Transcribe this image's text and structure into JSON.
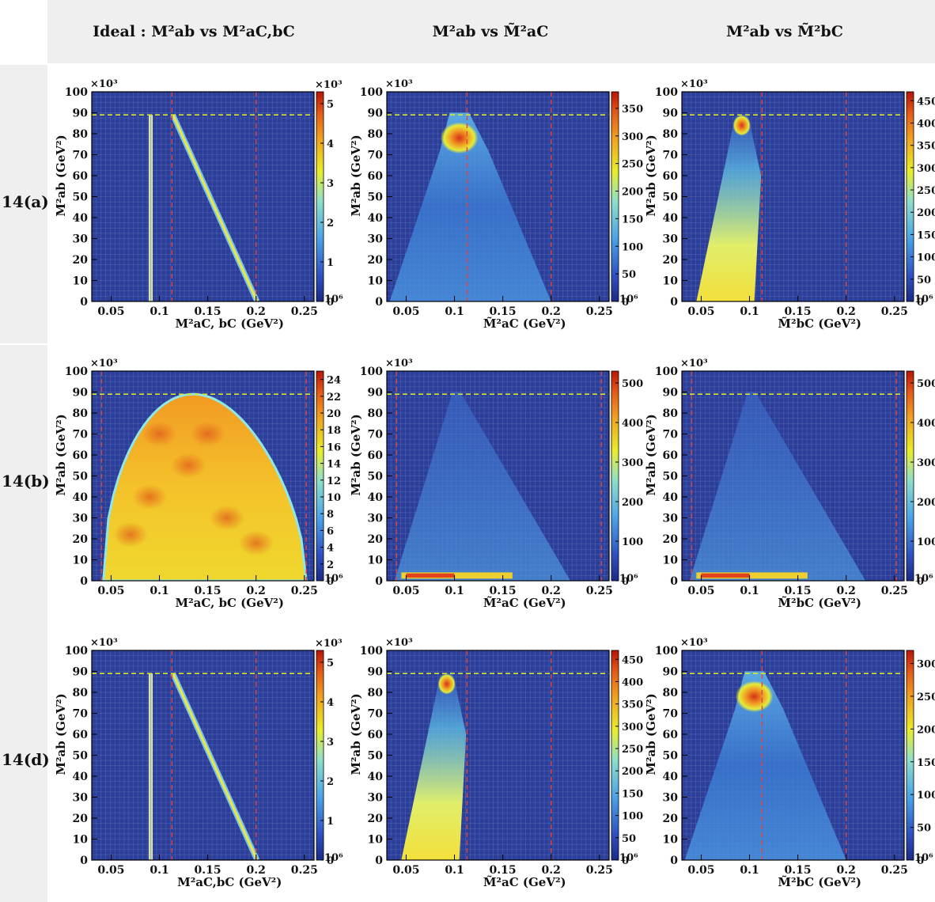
{
  "headers": [
    "Ideal : M²ab vs M²aC,bC",
    "M²ab vs M̃²aC",
    "M²ab vs M̃²bC"
  ],
  "rows": [
    "14(a)",
    "14(b)",
    "14(d)"
  ],
  "colors": {
    "frame_bg": "#2a3e9a",
    "cold": "#1b2a85",
    "hot": "#c81e12",
    "ref_red": "#e0473a",
    "ref_yellow": "#d8e62a"
  },
  "chart_data": [
    {
      "type": "heatmap",
      "id": "r0c0",
      "xlabel": "M²aC, bC (GeV²)",
      "ylabel": "M²ab (GeV²)",
      "xlim": [
        0.03,
        0.26
      ],
      "ylim": [
        0,
        100
      ],
      "x_multiplier": "×10⁶",
      "y_multiplier": "×10³",
      "xticks": [
        "0.05",
        "0.1",
        "0.15",
        "0.2",
        "0.25"
      ],
      "yticks": [
        "0",
        "10",
        "20",
        "30",
        "40",
        "50",
        "60",
        "70",
        "80",
        "90",
        "100"
      ],
      "z_multiplier": "×10³",
      "zticks": [
        {
          "v": 0,
          "t": "0"
        },
        {
          "v": 1,
          "t": "1"
        },
        {
          "v": 2,
          "t": "2"
        },
        {
          "v": 3,
          "t": "3"
        },
        {
          "v": 4,
          "t": "4"
        },
        {
          "v": 5,
          "t": "5"
        }
      ],
      "zmax": 5.3,
      "ref_x": [
        0.113,
        0.2
      ],
      "ref_y": 89,
      "shape": "ideal"
    },
    {
      "type": "heatmap",
      "id": "r0c1",
      "xlabel": "M̃²aC (GeV²)",
      "ylabel": "M²ab (GeV²)",
      "xlim": [
        0.03,
        0.26
      ],
      "ylim": [
        0,
        100
      ],
      "x_multiplier": "×10⁶",
      "y_multiplier": "×10³",
      "xticks": [
        "0.05",
        "0.1",
        "0.15",
        "0.2",
        "0.25"
      ],
      "yticks": [
        "0",
        "10",
        "20",
        "30",
        "40",
        "50",
        "60",
        "70",
        "80",
        "90",
        "100"
      ],
      "zticks": [
        {
          "v": 0,
          "t": "0"
        },
        {
          "v": 50,
          "t": "50"
        },
        {
          "v": 100,
          "t": "100"
        },
        {
          "v": 150,
          "t": "150"
        },
        {
          "v": 200,
          "t": "200"
        },
        {
          "v": 250,
          "t": "250"
        },
        {
          "v": 300,
          "t": "300"
        },
        {
          "v": 350,
          "t": "350"
        }
      ],
      "zmax": 380,
      "ref_x": [
        0.113,
        0.2
      ],
      "ref_y": 89,
      "shape": "triangle"
    },
    {
      "type": "heatmap",
      "id": "r0c2",
      "xlabel": "M̃²bC (GeV²)",
      "ylabel": "M²ab (GeV²)",
      "xlim": [
        0.03,
        0.26
      ],
      "ylim": [
        0,
        100
      ],
      "x_multiplier": "×10⁶",
      "y_multiplier": "×10³",
      "xticks": [
        "0.05",
        "0.1",
        "0.15",
        "0.2",
        "0.25"
      ],
      "yticks": [
        "0",
        "10",
        "20",
        "30",
        "40",
        "50",
        "60",
        "70",
        "80",
        "90",
        "100"
      ],
      "zticks": [
        {
          "v": 0,
          "t": "0"
        },
        {
          "v": 50,
          "t": "50"
        },
        {
          "v": 100,
          "t": "100"
        },
        {
          "v": 150,
          "t": "150"
        },
        {
          "v": 200,
          "t": "200"
        },
        {
          "v": 250,
          "t": "250"
        },
        {
          "v": 300,
          "t": "300"
        },
        {
          "v": 350,
          "t": "350"
        },
        {
          "v": 400,
          "t": "400"
        },
        {
          "v": 450,
          "t": "450"
        }
      ],
      "zmax": 470,
      "ref_x": [
        0.113,
        0.2
      ],
      "ref_y": 89,
      "shape": "spike"
    },
    {
      "type": "heatmap",
      "id": "r1c0",
      "xlabel": "M²aC, bC (GeV²)",
      "ylabel": "M²ab (GeV²)",
      "xlim": [
        0.03,
        0.26
      ],
      "ylim": [
        0,
        100
      ],
      "x_multiplier": "×10⁶",
      "y_multiplier": "×10³",
      "xticks": [
        "0.05",
        "0.1",
        "0.15",
        "0.2",
        "0.25"
      ],
      "yticks": [
        "0",
        "10",
        "20",
        "30",
        "40",
        "50",
        "60",
        "70",
        "80",
        "90",
        "100"
      ],
      "zticks": [
        {
          "v": 0,
          "t": "0"
        },
        {
          "v": 2,
          "t": "2"
        },
        {
          "v": 4,
          "t": "4"
        },
        {
          "v": 6,
          "t": "6"
        },
        {
          "v": 8,
          "t": "8"
        },
        {
          "v": 10,
          "t": "10"
        },
        {
          "v": 12,
          "t": "12"
        },
        {
          "v": 14,
          "t": "14"
        },
        {
          "v": 16,
          "t": "16"
        },
        {
          "v": 18,
          "t": "18"
        },
        {
          "v": 20,
          "t": "20"
        },
        {
          "v": 22,
          "t": "22"
        },
        {
          "v": 24,
          "t": "24"
        }
      ],
      "zmax": 25,
      "ref_x": [
        0.04,
        0.252
      ],
      "ref_y": 89,
      "shape": "dome"
    },
    {
      "type": "heatmap",
      "id": "r1c1",
      "xlabel": "M̃²aC (GeV²)",
      "ylabel": "M²ab (GeV²)",
      "xlim": [
        0.03,
        0.26
      ],
      "ylim": [
        0,
        100
      ],
      "x_multiplier": "×10⁶",
      "y_multiplier": "×10³",
      "xticks": [
        "0.05",
        "0.1",
        "0.15",
        "0.2",
        "0.25"
      ],
      "yticks": [
        "0",
        "10",
        "20",
        "30",
        "40",
        "50",
        "60",
        "70",
        "80",
        "90",
        "100"
      ],
      "zticks": [
        {
          "v": 0,
          "t": "0"
        },
        {
          "v": 100,
          "t": "100"
        },
        {
          "v": 200,
          "t": "200"
        },
        {
          "v": 300,
          "t": "300"
        },
        {
          "v": 400,
          "t": "400"
        },
        {
          "v": 500,
          "t": "500"
        }
      ],
      "zmax": 530,
      "ref_x": [
        0.04,
        0.252
      ],
      "ref_y": 89,
      "shape": "diffuse"
    },
    {
      "type": "heatmap",
      "id": "r1c2",
      "xlabel": "M̃²bC (GeV²)",
      "ylabel": "M²ab (GeV²)",
      "xlim": [
        0.03,
        0.26
      ],
      "ylim": [
        0,
        100
      ],
      "x_multiplier": "×10⁶",
      "y_multiplier": "×10³",
      "xticks": [
        "0.05",
        "0.1",
        "0.15",
        "0.2",
        "0.25"
      ],
      "yticks": [
        "0",
        "10",
        "20",
        "30",
        "40",
        "50",
        "60",
        "70",
        "80",
        "90",
        "100"
      ],
      "zticks": [
        {
          "v": 0,
          "t": "0"
        },
        {
          "v": 100,
          "t": "100"
        },
        {
          "v": 200,
          "t": "200"
        },
        {
          "v": 300,
          "t": "300"
        },
        {
          "v": 400,
          "t": "400"
        },
        {
          "v": 500,
          "t": "500"
        }
      ],
      "zmax": 530,
      "ref_x": [
        0.04,
        0.252
      ],
      "ref_y": 89,
      "shape": "diffuse"
    },
    {
      "type": "heatmap",
      "id": "r2c0",
      "xlabel": "M²aC,bC (GeV²)",
      "ylabel": "M²ab (GeV²)",
      "xlim": [
        0.03,
        0.26
      ],
      "ylim": [
        0,
        100
      ],
      "x_multiplier": "×10⁶",
      "y_multiplier": "×10³",
      "xticks": [
        "0.05",
        "0.1",
        "0.15",
        "0.2",
        "0.25"
      ],
      "yticks": [
        "0",
        "10",
        "20",
        "30",
        "40",
        "50",
        "60",
        "70",
        "80",
        "90",
        "100"
      ],
      "z_multiplier": "×10³",
      "zticks": [
        {
          "v": 0,
          "t": "0"
        },
        {
          "v": 1,
          "t": "1"
        },
        {
          "v": 2,
          "t": "2"
        },
        {
          "v": 3,
          "t": "3"
        },
        {
          "v": 4,
          "t": "4"
        },
        {
          "v": 5,
          "t": "5"
        }
      ],
      "zmax": 5.3,
      "ref_x": [
        0.113,
        0.2
      ],
      "ref_y": 89,
      "shape": "ideal"
    },
    {
      "type": "heatmap",
      "id": "r2c1",
      "xlabel": "M̃²aC (GeV²)",
      "ylabel": "M²ab (GeV²)",
      "xlim": [
        0.03,
        0.26
      ],
      "ylim": [
        0,
        100
      ],
      "x_multiplier": "×10⁶",
      "y_multiplier": "×10³",
      "xticks": [
        "0.05",
        "0.1",
        "0.15",
        "0.2",
        "0.25"
      ],
      "yticks": [
        "0",
        "10",
        "20",
        "30",
        "40",
        "50",
        "60",
        "70",
        "80",
        "90",
        "100"
      ],
      "zticks": [
        {
          "v": 0,
          "t": "0"
        },
        {
          "v": 50,
          "t": "50"
        },
        {
          "v": 100,
          "t": "100"
        },
        {
          "v": 150,
          "t": "150"
        },
        {
          "v": 200,
          "t": "200"
        },
        {
          "v": 250,
          "t": "250"
        },
        {
          "v": 300,
          "t": "300"
        },
        {
          "v": 350,
          "t": "350"
        },
        {
          "v": 400,
          "t": "400"
        },
        {
          "v": 450,
          "t": "450"
        }
      ],
      "zmax": 470,
      "ref_x": [
        0.113,
        0.2
      ],
      "ref_y": 89,
      "shape": "spike"
    },
    {
      "type": "heatmap",
      "id": "r2c2",
      "xlabel": "M̃²bC (GeV²)",
      "ylabel": "M²ab (GeV²)",
      "xlim": [
        0.03,
        0.26
      ],
      "ylim": [
        0,
        100
      ],
      "x_multiplier": "×10⁶",
      "y_multiplier": "×10³",
      "xticks": [
        "0.05",
        "0.1",
        "0.15",
        "0.2",
        "0.25"
      ],
      "yticks": [
        "0",
        "10",
        "20",
        "30",
        "40",
        "50",
        "60",
        "70",
        "80",
        "90",
        "100"
      ],
      "zticks": [
        {
          "v": 0,
          "t": "0"
        },
        {
          "v": 50,
          "t": "50"
        },
        {
          "v": 100,
          "t": "100"
        },
        {
          "v": 150,
          "t": "150"
        },
        {
          "v": 200,
          "t": "200"
        },
        {
          "v": 250,
          "t": "250"
        },
        {
          "v": 300,
          "t": "300"
        }
      ],
      "zmax": 320,
      "ref_x": [
        0.113,
        0.2
      ],
      "ref_y": 89,
      "shape": "triangle"
    }
  ]
}
